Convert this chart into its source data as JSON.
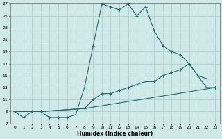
{
  "xlabel": "Humidex (Indice chaleur)",
  "background_color": "#cfe8e8",
  "grid_color": "#afd0d0",
  "line_color": "#1e6b6b",
  "xlim": [
    -0.5,
    23.5
  ],
  "ylim": [
    7,
    27
  ],
  "xticks": [
    0,
    1,
    2,
    3,
    4,
    5,
    6,
    7,
    8,
    9,
    10,
    11,
    12,
    13,
    14,
    15,
    16,
    17,
    18,
    19,
    20,
    21,
    22,
    23
  ],
  "yticks": [
    7,
    9,
    11,
    13,
    15,
    17,
    19,
    21,
    23,
    25,
    27
  ],
  "curve1_x": [
    0,
    1,
    2,
    3,
    4,
    5,
    6,
    7,
    8,
    9,
    10,
    11,
    12,
    13,
    14,
    15,
    16,
    17,
    18,
    19,
    20,
    21,
    22
  ],
  "curve1_y": [
    9,
    8,
    9,
    9,
    8,
    8,
    8,
    8.5,
    13,
    20,
    27,
    26.5,
    26,
    27,
    25,
    26.5,
    22.5,
    20,
    19,
    18.5,
    17,
    15,
    14.5
  ],
  "curve2_x": [
    0,
    3,
    8,
    9,
    10,
    11,
    12,
    13,
    14,
    15,
    16,
    17,
    18,
    19,
    20,
    21,
    22,
    23
  ],
  "curve2_y": [
    9,
    9,
    9.5,
    11,
    12,
    12,
    12.5,
    13,
    13.5,
    14,
    14,
    15,
    15.5,
    16,
    17,
    15,
    13,
    13
  ],
  "curve3_x": [
    0,
    3,
    8,
    23
  ],
  "curve3_y": [
    9,
    9,
    9.5,
    13
  ]
}
